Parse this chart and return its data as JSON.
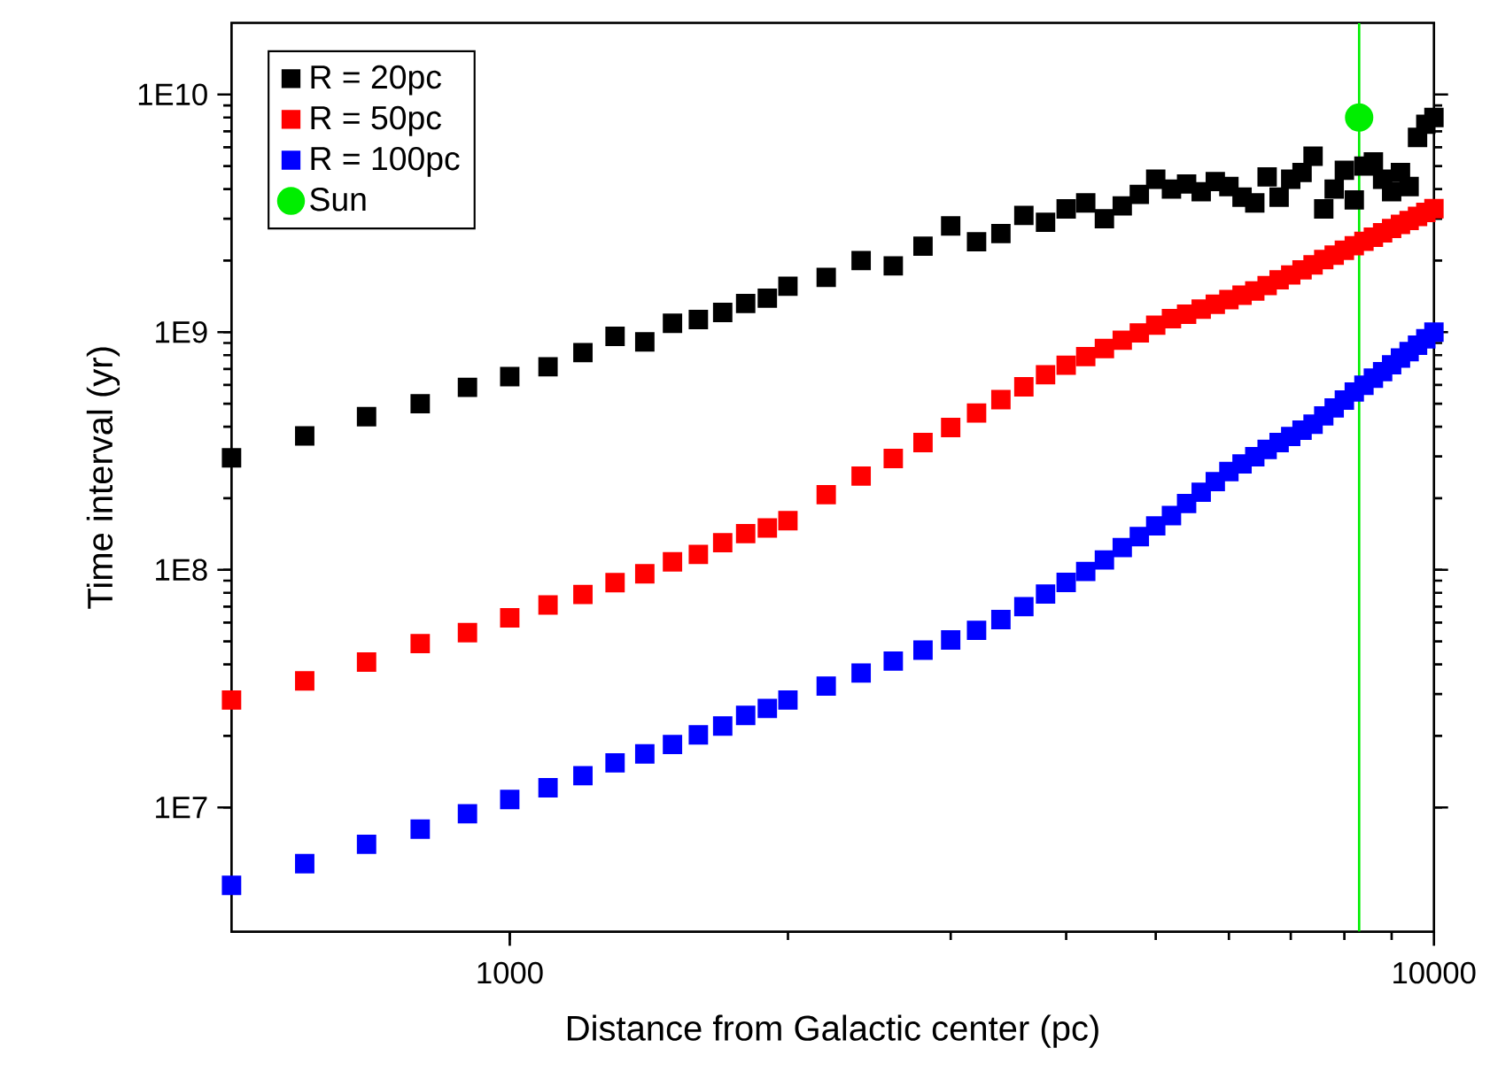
{
  "chart_data": {
    "type": "scatter",
    "xlabel": "Distance from Galactic center (pc)",
    "ylabel": "Time interval (yr)",
    "log": "xy",
    "legend": "top left",
    "xlim": [
      500,
      10000
    ],
    "ylim": [
      3000000,
      20000000000
    ],
    "xticks": [
      1000,
      10000
    ],
    "yticks": [
      {
        "value": 10000000,
        "label": "1E7"
      },
      {
        "value": 100000000,
        "label": "1E8"
      },
      {
        "value": 1000000000,
        "label": "1E9"
      },
      {
        "value": 10000000000,
        "label": "1E10"
      }
    ],
    "x": [
      500,
      600,
      700,
      800,
      900,
      1000,
      1100,
      1200,
      1300,
      1400,
      1500,
      1600,
      1700,
      1800,
      1900,
      2000,
      2200,
      2400,
      2600,
      2800,
      3000,
      3200,
      3400,
      3600,
      3800,
      4000,
      4200,
      4400,
      4600,
      4800,
      5000,
      5200,
      5400,
      5600,
      5800,
      6000,
      6200,
      6400,
      6600,
      6800,
      7000,
      7200,
      7400,
      7600,
      7800,
      8000,
      8200,
      8400,
      8600,
      8800,
      9000,
      9200,
      9400,
      9600,
      9800,
      10000
    ],
    "ref_lines": [
      {
        "axis": "x",
        "value": 8300,
        "color": "#00ee00"
      }
    ],
    "series": [
      {
        "name": "R = 20pc",
        "color": "#000000",
        "marker": "square",
        "values": [
          296000000.0,
          366000000.0,
          441000000.0,
          500000000.0,
          586000000.0,
          650000000.0,
          715000000.0,
          820000000.0,
          960000000.0,
          910000000.0,
          1090000000.0,
          1130000000.0,
          1210000000.0,
          1320000000.0,
          1390000000.0,
          1560000000.0,
          1700000000.0,
          2000000000.0,
          1900000000.0,
          2300000000.0,
          2800000000.0,
          2400000000.0,
          2600000000.0,
          3100000000.0,
          2900000000.0,
          3300000000.0,
          3500000000.0,
          3000000000.0,
          3400000000.0,
          3800000000.0,
          4400000000.0,
          4000000000.0,
          4200000000.0,
          3900000000.0,
          4300000000.0,
          4100000000.0,
          3700000000.0,
          3500000000.0,
          4500000000.0,
          3700000000.0,
          4400000000.0,
          4700000000.0,
          5500000000.0,
          3300000000.0,
          4000000000.0,
          4800000000.0,
          3600000000.0,
          5000000000.0,
          5200000000.0,
          4400000000.0,
          3900000000.0,
          4700000000.0,
          4100000000.0,
          6600000000.0,
          7500000000.0,
          8000000000.0
        ]
      },
      {
        "name": "R = 50pc",
        "color": "#ff0000",
        "marker": "square",
        "values": [
          28300000.0,
          34100000.0,
          40900000.0,
          48900000.0,
          54400000.0,
          62800000.0,
          71100000.0,
          78700000.0,
          88300000.0,
          96200000.0,
          108000000.0,
          116000000.0,
          130000000.0,
          142000000.0,
          150000000.0,
          161000000.0,
          207000000.0,
          248000000.0,
          294000000.0,
          343000000.0,
          397000000.0,
          457000000.0,
          520000000.0,
          589000000.0,
          662000000.0,
          726000000.0,
          789000000.0,
          853000000.0,
          925000000.0,
          993000000.0,
          1070000000.0,
          1140000000.0,
          1190000000.0,
          1250000000.0,
          1310000000.0,
          1370000000.0,
          1430000000.0,
          1490000000.0,
          1570000000.0,
          1660000000.0,
          1740000000.0,
          1830000000.0,
          1920000000.0,
          2020000000.0,
          2110000000.0,
          2210000000.0,
          2310000000.0,
          2410000000.0,
          2510000000.0,
          2620000000.0,
          2730000000.0,
          2840000000.0,
          2950000000.0,
          3070000000.0,
          3190000000.0,
          3310000000.0
        ]
      },
      {
        "name": "R = 100pc",
        "color": "#0000ff",
        "marker": "square",
        "values": [
          4700000.0,
          5800000.0,
          7000000.0,
          8100000.0,
          9400000.0,
          10800000.0,
          12100000.0,
          13600000.0,
          15400000.0,
          16800000.0,
          18400000.0,
          20200000.0,
          22000000.0,
          24400000.0,
          26100000.0,
          28300000.0,
          32400000.0,
          36800000.0,
          41300000.0,
          45900000.0,
          50700000.0,
          55600000.0,
          61700000.0,
          70000000.0,
          79100000.0,
          88500000.0,
          98400000.0,
          110000000.0,
          124000000.0,
          138000000.0,
          153000000.0,
          169000000.0,
          190000000.0,
          212000000.0,
          235000000.0,
          259000000.0,
          279000000.0,
          299000000.0,
          321000000.0,
          343000000.0,
          364000000.0,
          387000000.0,
          410000000.0,
          444000000.0,
          480000000.0,
          518000000.0,
          560000000.0,
          598000000.0,
          640000000.0,
          682000000.0,
          729000000.0,
          778000000.0,
          828000000.0,
          881000000.0,
          938000000.0,
          1000000000.0
        ]
      },
      {
        "name": "Sun",
        "color": "#00ee00",
        "marker": "circle",
        "x": [
          8300
        ],
        "values": [
          8000000000.0
        ]
      }
    ]
  }
}
